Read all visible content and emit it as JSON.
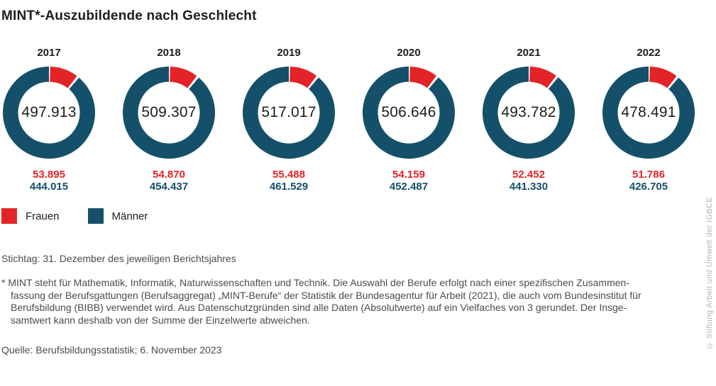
{
  "title": "MINT*-Auszubildende nach Geschlecht",
  "colors": {
    "frauen": "#e32328",
    "maenner": "#15506a",
    "heading": "#1d1d1b",
    "body_text": "#4b4b4a",
    "copyright_text": "#b4b4b4"
  },
  "chart_data": {
    "type": "pie",
    "variant": "donut-small-multiples",
    "legend": [
      {
        "label": "Frauen",
        "color": "#e32328"
      },
      {
        "label": "Männer",
        "color": "#15506a"
      }
    ],
    "years": [
      {
        "year": "2017",
        "total": "497.913",
        "frauen": "53.895",
        "maenner": "444.015"
      },
      {
        "year": "2018",
        "total": "509.307",
        "frauen": "54.870",
        "maenner": "454.437"
      },
      {
        "year": "2019",
        "total": "517.017",
        "frauen": "55.488",
        "maenner": "461.529"
      },
      {
        "year": "2020",
        "total": "506.646",
        "frauen": "54.159",
        "maenner": "452.487"
      },
      {
        "year": "2021",
        "total": "493.782",
        "frauen": "52.452",
        "maenner": "441.330"
      },
      {
        "year": "2022",
        "total": "478.491",
        "frauen": "51.786",
        "maenner": "426.705"
      }
    ]
  },
  "footer": {
    "stichtag": "Stichtag: 31. Dezember des jeweiligen Berichtsjahres",
    "footnote_lines": [
      "* MINT steht für Mathematik, Informatik, Naturwissenschaften und Technik. Die Auswahl der Berufe erfolgt nach einer spezifischen Zusammen-",
      "fassung der Berufsgattungen (Berufsaggregat) „MINT-Berufe“ der Statistik der Bundesagentur für Arbeit (2021), die auch vom Bundesinstitut für",
      "Berufsbildung (BIBB) verwendet wird. Aus Datenschutzgründen sind alle Daten (Absolutwerte) auf ein Vielfaches von 3 gerundet. Der Insge-",
      "samtwert kann deshalb von der Summe der Einzelwerte abweichen."
    ],
    "quelle": "Quelle: Berufsbildungsstatistik; 6. November 2023"
  },
  "copyright": "© Stiftung Arbeit und Umwelt der IGBCE"
}
